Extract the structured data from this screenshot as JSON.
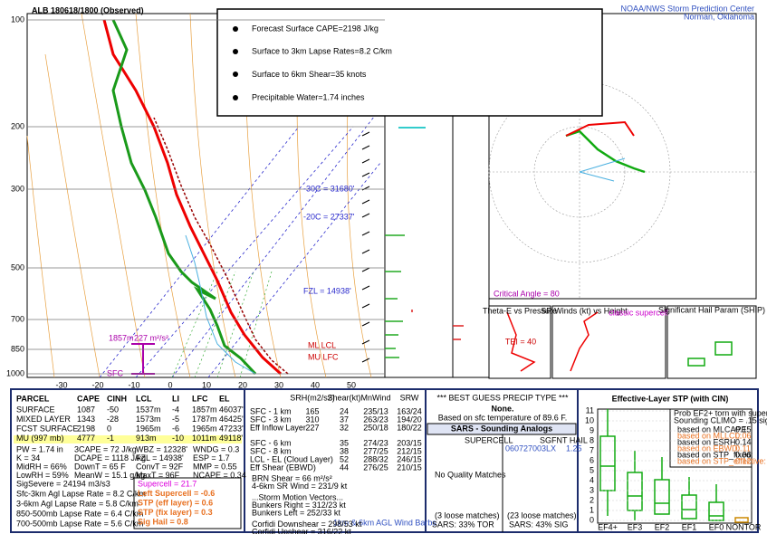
{
  "header": {
    "station_title": "ALB   180618/1800  (Observed)",
    "credit": [
      "NOAA/NWS Storm Prediction Center",
      "Norman, Oklahoma"
    ]
  },
  "callout": [
    "Forecast Surface CAPE=2198 J/kg",
    "Surface to 3km Lapse Rates=8.2 C/km",
    "Surface to 6km Shear=35 knots",
    "Precipitable Water=1.74 inches"
  ],
  "skewt": {
    "pressure_labels": [
      "100",
      "200",
      "300",
      "500",
      "700",
      "850",
      "1000"
    ],
    "temperature_labels": [
      "-30",
      "-20",
      "-10",
      "0",
      "10",
      "20",
      "30",
      "40",
      "50"
    ],
    "annotations": [
      "-30C = 31680'",
      "-20C = 27337'",
      "FZL = 14938'",
      "ML LCL",
      "MU LFC",
      "1857m",
      "227 m²/s²",
      "SFC"
    ]
  },
  "side_panels": {
    "theta_e": "Theta-E vs Pressure",
    "tei": "TEI = 40",
    "sr_winds": "SR Winds (kt) vs Height",
    "storm_type": "classic supercell",
    "ship": "Significant Hail Param (SHIP)",
    "critical_angle": "Critical Angle = 80",
    "barbs": "1km & 6km AGL Wind Barbs"
  },
  "parcel": {
    "header": [
      "PARCEL",
      "CAPE",
      "CINH",
      "LCL",
      "LI",
      "LFC",
      "EL"
    ],
    "rows": [
      [
        "SURFACE",
        "1087",
        "-50",
        "1537m",
        "-4",
        "1857m",
        "46037'"
      ],
      [
        "MIXED LAYER",
        "1343",
        "-28",
        "1573m",
        "-5",
        "1787m",
        "46425'"
      ],
      [
        "FCST SURFACE",
        "2198",
        "0",
        "1965m",
        "-6",
        "1965m",
        "47233'"
      ],
      [
        "MU    (997 mb)",
        "4777",
        "-1",
        "913m",
        "-10",
        "1011m",
        "49118'"
      ]
    ],
    "indices": [
      [
        "PW = 1.74 in",
        "3CAPE = 72 J/kg",
        "WBZ = 12328'",
        "WNDG = 0.3"
      ],
      [
        "K = 34",
        "DCAPE = 1118 J/kg",
        "FZL = 14938'",
        "ESP = 1.7"
      ],
      [
        "MidRH = 66%",
        "DownT = 65 F",
        "ConvT = 92F",
        "MMP = 0.55"
      ],
      [
        "LowRH = 59%",
        "MeanW = 15.1 g/kg",
        "MaxT = 96F",
        "NCAPE = 0.34"
      ]
    ],
    "sigsevere": "SigSevere = 24194 m3/s3",
    "lapse_rates": [
      "Sfc-3km Agl Lapse Rate = 8.2 C/km",
      "3-6km Agl Lapse Rate = 5.8 C/km",
      "850-500mb Lapse Rate = 6.4 C/km",
      "700-500mb Lapse Rate = 5.6 C/km"
    ],
    "composites": [
      "Supercell = 21.7",
      "Left Supercell = -0.6",
      "STP (eff layer) = 0.6",
      "STP (fix layer) = 0.3",
      "Sig Hail = 0.8"
    ]
  },
  "kinematics": {
    "header": [
      "SRH(m2/s2)",
      "Shear(kt)",
      "MnWind",
      "SRW"
    ],
    "rows": [
      {
        "label": "SFC - 1 km",
        "srh": "165",
        "shear": "24",
        "mnwind": "235/13",
        "srw": "163/24"
      },
      {
        "label": "SFC - 3 km",
        "srh": "310",
        "shear": "37",
        "mnwind": "263/23",
        "srw": "194/20"
      },
      {
        "label": "Eff Inflow Layer",
        "srh": "227",
        "shear": "32",
        "mnwind": "250/18",
        "srw": "180/22"
      },
      {
        "label": "SFC - 6 km",
        "shear": "35",
        "mnwind": "274/23",
        "srw": "203/15"
      },
      {
        "label": "SFC - 8 km",
        "shear": "38",
        "mnwind": "277/25",
        "srw": "212/15"
      },
      {
        "label": "LCL - EL (Cloud Layer)",
        "shear": "52",
        "mnwind": "288/32",
        "srw": "246/15"
      },
      {
        "label": "Eff Shear (EBWD)",
        "shear": "44",
        "mnwind": "276/25",
        "srw": "210/15"
      }
    ],
    "lines": [
      "BRN Shear = 66 m²/s²",
      "4-6km SR Wind = 231/9 kt",
      "...Storm Motion Vectors...",
      "Bunkers Right = 312/23 kt",
      "Bunkers Left = 252/33 kt",
      "Corfidi Downshear = 298/53 kt",
      "Corfidi Upshear = 316/22 kt"
    ]
  },
  "precip": {
    "header": "*** BEST GUESS PRECIP TYPE ***",
    "type": "None.",
    "basis": "Based on sfc temperature of 89.6 F."
  },
  "sars": {
    "title": "SARS - Sounding Analogs",
    "supercell": "SUPERCELL",
    "hail": "SGFNT HAIL",
    "supercell_matches": "No Quality Matches",
    "hail_match": "060727003LX",
    "hail_match_value": "1.25",
    "supercell_loose": "(3 loose matches)",
    "hail_loose": "(23 loose matches)",
    "supercell_result": "SARS: 33% TOR",
    "hail_result": "SARS: 43% SIG"
  },
  "stp": {
    "title": "Effective-Layer STP (with CIN)",
    "legend": [
      "Prob EF2+ torn with supercell",
      "Sounding CLIMO = .15 sigtor"
    ],
    "based_on": [
      [
        "based on MLCAPE:",
        "0.15"
      ],
      [
        "based on MLLCL:",
        "0.06"
      ],
      [
        "based on ESRH:",
        "0.14"
      ],
      [
        "based on EBWD:",
        "0.11"
      ],
      [
        "based on STP_fixed:",
        "0.06"
      ],
      [
        "based on STP_effective:",
        "0.12"
      ]
    ],
    "categories": [
      "EF4+",
      "EF3",
      "EF2",
      "EF1",
      "EF0",
      "NONTOR"
    ],
    "yticks": [
      "0",
      "1",
      "2",
      "3",
      "4",
      "5",
      "6",
      "7",
      "8",
      "9",
      "10",
      "11"
    ]
  }
}
